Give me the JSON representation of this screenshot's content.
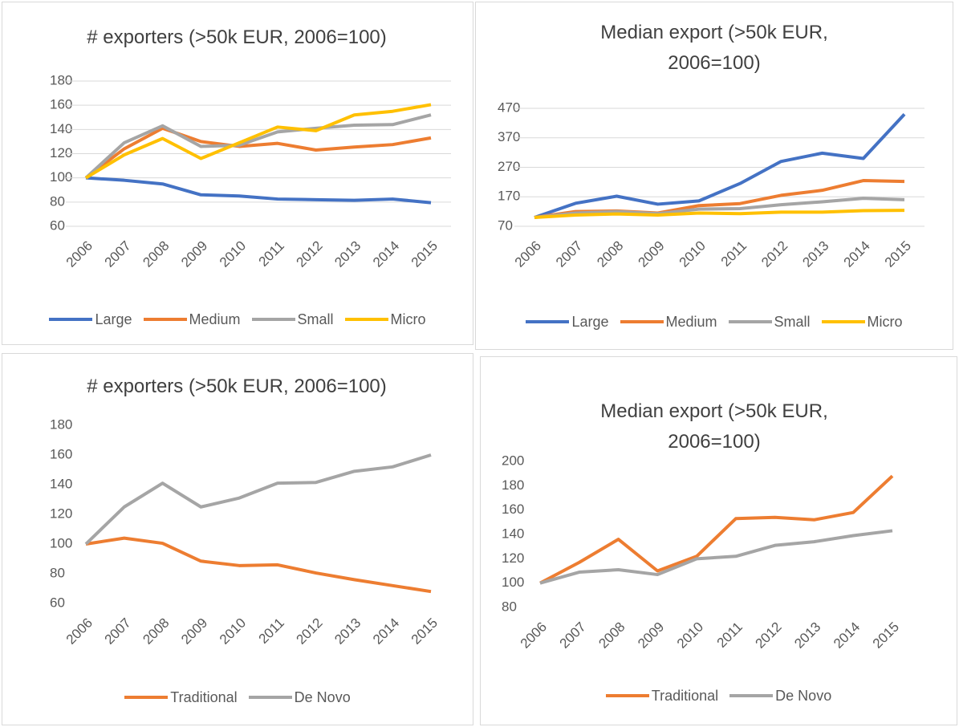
{
  "chart_data": [
    {
      "type": "line",
      "title": "# exporters (>50k EUR, 2006=100)",
      "categories": [
        "2006",
        "2007",
        "2008",
        "2009",
        "2010",
        "2011",
        "2012",
        "2013",
        "2014",
        "2015"
      ],
      "ylim": [
        60,
        180
      ],
      "yticks": [
        60,
        80,
        100,
        120,
        140,
        160,
        180
      ],
      "grid": true,
      "legend": "bottom",
      "series": [
        {
          "name": "Large",
          "color": "#4472c4",
          "values": [
            100,
            98,
            95,
            86,
            85,
            82.5,
            82,
            81.5,
            82.5,
            79.5
          ]
        },
        {
          "name": "Medium",
          "color": "#ed7d31",
          "values": [
            100,
            124,
            141,
            130,
            126,
            128.5,
            123,
            125.5,
            127.5,
            133
          ]
        },
        {
          "name": "Small",
          "color": "#a5a5a5",
          "values": [
            100,
            129,
            143,
            126,
            127,
            138,
            141,
            143.5,
            144,
            152
          ]
        },
        {
          "name": "Micro",
          "color": "#ffc000",
          "values": [
            100,
            119,
            132.5,
            116,
            129,
            142,
            139,
            152,
            155,
            160.5
          ]
        }
      ]
    },
    {
      "type": "line",
      "title": "Median export (>50k EUR, 2006=100)",
      "categories": [
        "2006",
        "2007",
        "2008",
        "2009",
        "2010",
        "2011",
        "2012",
        "2013",
        "2014",
        "2015"
      ],
      "ylim": [
        70,
        470
      ],
      "yticks": [
        70,
        170,
        270,
        370,
        470
      ],
      "grid": true,
      "legend": "bottom",
      "series": [
        {
          "name": "Large",
          "color": "#4472c4",
          "values": [
            100,
            148,
            172,
            145,
            156,
            215,
            290,
            318,
            300,
            450
          ]
        },
        {
          "name": "Medium",
          "color": "#ed7d31",
          "values": [
            100,
            120,
            122,
            115,
            140,
            147,
            175,
            192,
            225,
            222
          ]
        },
        {
          "name": "Small",
          "color": "#a5a5a5",
          "values": [
            100,
            115,
            120,
            113,
            128,
            130,
            143,
            153,
            165,
            160
          ]
        },
        {
          "name": "Micro",
          "color": "#ffc000",
          "values": [
            100,
            108,
            112,
            108,
            115,
            113,
            118,
            118,
            123,
            124
          ]
        }
      ]
    },
    {
      "type": "line",
      "title": "# exporters (>50k EUR, 2006=100)",
      "categories": [
        "2006",
        "2007",
        "2008",
        "2009",
        "2010",
        "2011",
        "2012",
        "2013",
        "2014",
        "2015"
      ],
      "ylim": [
        60,
        180
      ],
      "yticks": [
        60,
        80,
        100,
        120,
        140,
        160,
        180
      ],
      "grid": false,
      "legend": "bottom",
      "series": [
        {
          "name": "Traditional",
          "color": "#ed7d31",
          "values": [
            100,
            104,
            100.5,
            88.5,
            85.5,
            86,
            80.5,
            76,
            72,
            68
          ]
        },
        {
          "name": "De Novo",
          "color": "#a5a5a5",
          "values": [
            100,
            125,
            141,
            125,
            131,
            141,
            141.5,
            149,
            152,
            160
          ]
        }
      ]
    },
    {
      "type": "line",
      "title": "Median export (>50k EUR, 2006=100)",
      "categories": [
        "2006",
        "2007",
        "2008",
        "2009",
        "2010",
        "2011",
        "2012",
        "2013",
        "2014",
        "2015"
      ],
      "ylim": [
        80,
        200
      ],
      "yticks": [
        80,
        100,
        120,
        140,
        160,
        180,
        200
      ],
      "grid": false,
      "legend": "bottom",
      "series": [
        {
          "name": "Traditional",
          "color": "#ed7d31",
          "values": [
            100,
            117,
            136,
            110,
            122,
            153,
            154,
            152,
            158,
            188
          ]
        },
        {
          "name": "De Novo",
          "color": "#a5a5a5",
          "values": [
            100,
            109,
            111,
            107,
            120,
            122,
            131,
            134,
            139,
            143
          ]
        }
      ]
    }
  ]
}
